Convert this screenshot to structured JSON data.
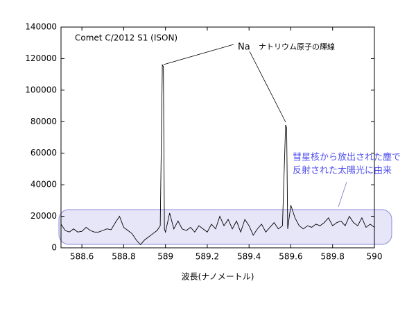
{
  "chart_data": {
    "type": "line",
    "annotations": [
      "Comet C/2012 S1 (ISON)",
      "Na",
      "ナトリウム原子の輝線",
      "彗星核から放出された塵で",
      "反射された太陽光に由来"
    ],
    "xlabel": "波長(ナノメートル)",
    "color": "#000000",
    "x": [
      588.5,
      588.52,
      588.54,
      588.56,
      588.58,
      588.6,
      588.62,
      588.64,
      588.66,
      588.68,
      588.7,
      588.72,
      588.74,
      588.76,
      588.78,
      588.8,
      588.82,
      588.84,
      588.86,
      588.88,
      588.9,
      588.92,
      588.94,
      588.96,
      588.975,
      588.985,
      588.99,
      588.995,
      589.0,
      589.02,
      589.04,
      589.06,
      589.08,
      589.1,
      589.12,
      589.14,
      589.16,
      589.18,
      589.2,
      589.22,
      589.24,
      589.26,
      589.28,
      589.3,
      589.32,
      589.34,
      589.36,
      589.38,
      589.4,
      589.42,
      589.44,
      589.46,
      589.48,
      589.5,
      589.52,
      589.54,
      589.56,
      589.575,
      589.58,
      589.585,
      589.6,
      589.62,
      589.64,
      589.66,
      589.68,
      589.7,
      589.72,
      589.74,
      589.76,
      589.78,
      589.8,
      589.82,
      589.84,
      589.86,
      589.88,
      589.9,
      589.92,
      589.94,
      589.96,
      589.98,
      590
    ],
    "values": [
      15000,
      11000,
      10000,
      12000,
      10000,
      10500,
      13000,
      11000,
      10000,
      10000,
      11000,
      12000,
      11500,
      16000,
      20000,
      13000,
      11000,
      9000,
      5000,
      2000,
      5000,
      7000,
      9000,
      11000,
      14000,
      116000,
      115000,
      12000,
      10000,
      22000,
      12000,
      17000,
      12000,
      11000,
      13000,
      10000,
      14000,
      12000,
      10000,
      15000,
      12000,
      20000,
      14000,
      18000,
      12000,
      17000,
      10000,
      18000,
      14000,
      8000,
      12000,
      15000,
      10000,
      13000,
      16000,
      12000,
      14000,
      78000,
      76000,
      12000,
      27000,
      19000,
      14000,
      12000,
      14000,
      13000,
      15000,
      14000,
      16000,
      19000,
      14000,
      16000,
      17000,
      14000,
      20000,
      16000,
      14000,
      19000,
      13000,
      15000,
      13000
    ],
    "xlim": [
      588.5,
      590
    ],
    "xticks": [
      588.6,
      588.8,
      589,
      589.2,
      589.4,
      589.6,
      589.8,
      590
    ],
    "ylim": [
      0,
      140000
    ],
    "yticks": [
      0,
      20000,
      40000,
      60000,
      80000,
      100000,
      120000,
      140000
    ]
  }
}
